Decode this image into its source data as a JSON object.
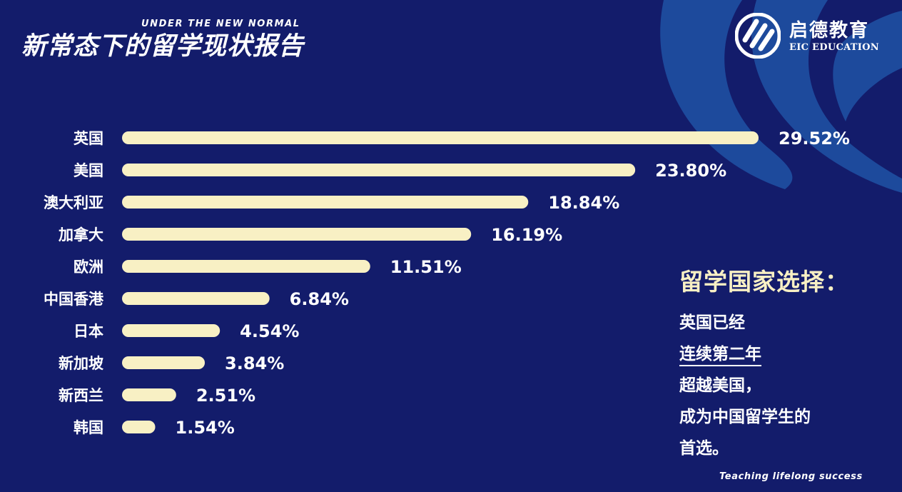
{
  "header": {
    "title": "新常态下的留学现状报告",
    "subtitle": "UNDER THE NEW NORMAL"
  },
  "logo": {
    "name_cn": "启德教育",
    "name_en": "EIC EDUCATION",
    "icon": "eic-logo-icon"
  },
  "chart_data": {
    "type": "bar",
    "orientation": "horizontal",
    "categories": [
      "英国",
      "美国",
      "澳大利亚",
      "加拿大",
      "欧洲",
      "中国香港",
      "日本",
      "新加坡",
      "新西兰",
      "韩国"
    ],
    "values": [
      29.52,
      23.8,
      18.84,
      16.19,
      11.51,
      6.84,
      4.54,
      3.84,
      2.51,
      1.54
    ],
    "value_labels": [
      "29.52%",
      "23.80%",
      "18.84%",
      "16.19%",
      "11.51%",
      "6.84%",
      "4.54%",
      "3.84%",
      "2.51%",
      "1.54%"
    ],
    "unit": "%",
    "title": "",
    "xlabel": "",
    "ylabel": "",
    "xlim": [
      0,
      29.52
    ],
    "grid": false,
    "legend": "none"
  },
  "side_note": {
    "title": "留学国家选择：",
    "lines": [
      "英国已经",
      "连续第二年",
      "超越美国，",
      "成为中国留学生的",
      "首选。"
    ]
  },
  "footer": {
    "tagline": "Teaching lifelong success"
  },
  "colors": {
    "background": "#131c6b",
    "bar": "#f8f0c4",
    "deco": "#1d4a9c",
    "text": "#ffffff"
  }
}
